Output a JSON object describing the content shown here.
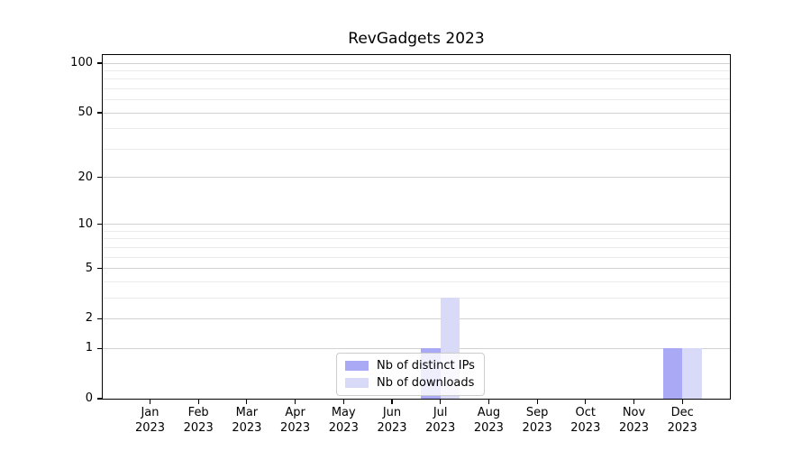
{
  "chart_data": {
    "type": "bar",
    "title": "RevGadgets 2023",
    "categories": [
      "Jan 2023",
      "Feb 2023",
      "Mar 2023",
      "Apr 2023",
      "May 2023",
      "Jun 2023",
      "Jul 2023",
      "Aug 2023",
      "Sep 2023",
      "Oct 2023",
      "Nov 2023",
      "Dec 2023"
    ],
    "x_ticks": [
      {
        "month": "Jan",
        "year": "2023"
      },
      {
        "month": "Feb",
        "year": "2023"
      },
      {
        "month": "Mar",
        "year": "2023"
      },
      {
        "month": "Apr",
        "year": "2023"
      },
      {
        "month": "May",
        "year": "2023"
      },
      {
        "month": "Jun",
        "year": "2023"
      },
      {
        "month": "Jul",
        "year": "2023"
      },
      {
        "month": "Aug",
        "year": "2023"
      },
      {
        "month": "Sep",
        "year": "2023"
      },
      {
        "month": "Oct",
        "year": "2023"
      },
      {
        "month": "Nov",
        "year": "2023"
      },
      {
        "month": "Dec",
        "year": "2023"
      }
    ],
    "series": [
      {
        "name": "Nb of distinct IPs",
        "color": "#a9a9f6",
        "values": [
          0,
          0,
          0,
          0,
          0,
          0,
          1,
          0,
          0,
          0,
          0,
          1
        ]
      },
      {
        "name": "Nb of downloads",
        "color": "#d9d9f8",
        "values": [
          0,
          0,
          0,
          0,
          0,
          0,
          3,
          0,
          0,
          0,
          0,
          1
        ]
      }
    ],
    "yscale": "log1p",
    "ylim": [
      0,
      114
    ],
    "y_major_ticks": [
      0,
      1,
      2,
      5,
      10,
      20,
      50,
      100
    ],
    "y_minor_ticks": [
      3,
      4,
      6,
      7,
      8,
      9,
      30,
      40,
      60,
      70,
      80,
      90
    ],
    "grid": true,
    "legend_position": "lower center inside",
    "colors": {
      "background": "#ffffff",
      "spine": "#000000",
      "major_grid": "#d2d2d2",
      "minor_grid": "#ececec",
      "text": "#000000"
    }
  }
}
